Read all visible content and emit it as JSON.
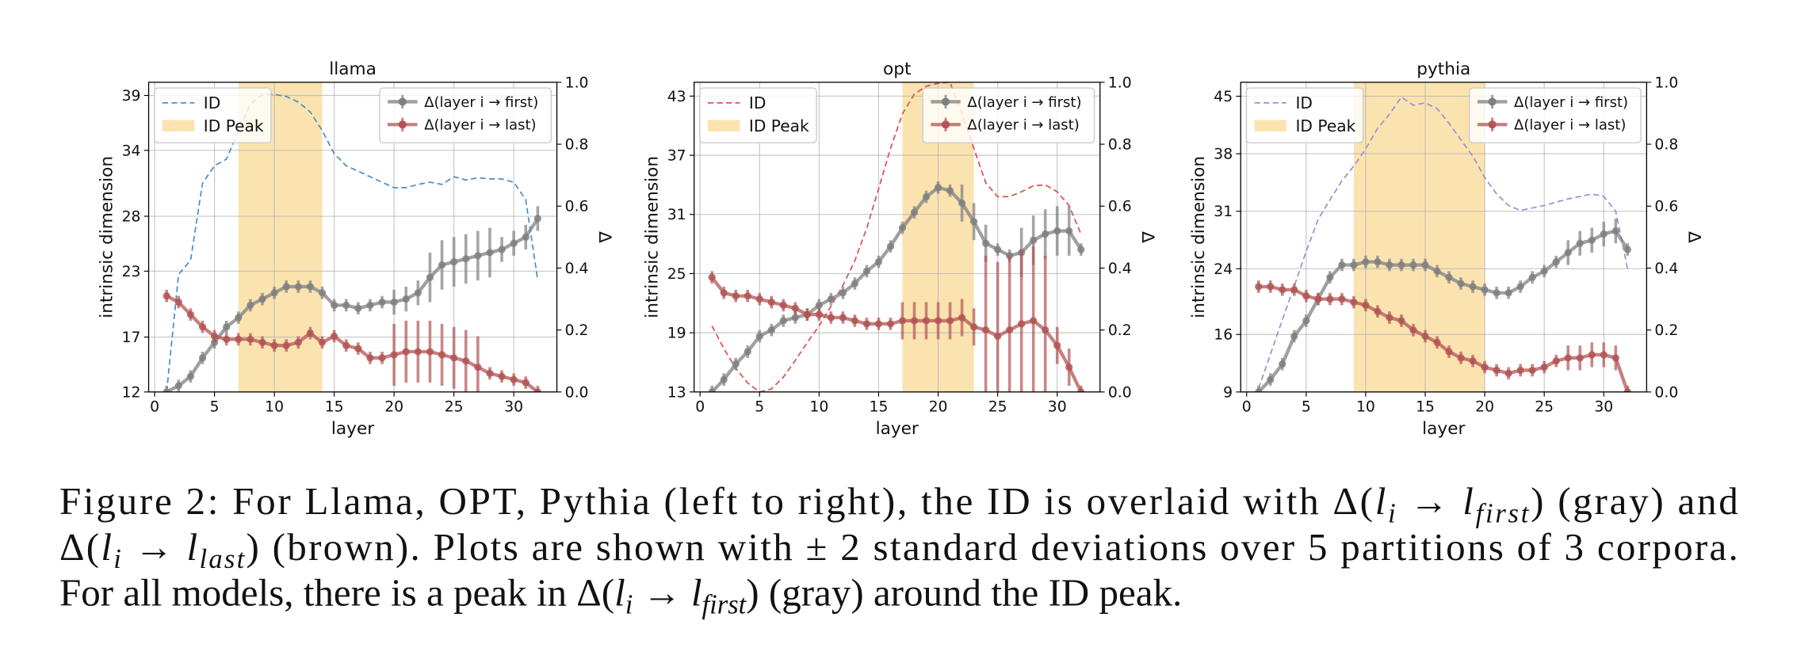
{
  "chart_data": [
    {
      "type": "line",
      "title": "llama",
      "xlabel": "layer",
      "ylabel": "intrinsic dimension",
      "y2label": "Δ",
      "peak": [
        7,
        14
      ],
      "peak_label": "ID Peak",
      "peak_color": "#fbe3b0",
      "grid": true,
      "xlim": [
        -0.5,
        33.6
      ],
      "xticks": [
        0,
        5,
        10,
        15,
        20,
        25,
        30
      ],
      "ylim": [
        12,
        40.2
      ],
      "yticks": [
        12,
        17,
        23,
        28,
        34,
        39
      ],
      "y2lim": [
        0,
        1
      ],
      "y2ticks": [
        {
          "value": 0,
          "label": "0.0"
        },
        0.2,
        0.4,
        0.6,
        0.8,
        {
          "value": 1,
          "label": "1.0"
        }
      ],
      "x": [
        1,
        2,
        3,
        4,
        5,
        6,
        7,
        8,
        9,
        10,
        11,
        12,
        13,
        14,
        15,
        16,
        17,
        18,
        19,
        20,
        21,
        22,
        23,
        24,
        25,
        26,
        27,
        28,
        29,
        30,
        31,
        32
      ],
      "series": [
        {
          "name": "ID",
          "color": "#4a8fc7",
          "axis": "y",
          "dashed": true,
          "values": [
            12,
            22.7,
            24,
            31,
            32.6,
            33.2,
            35.8,
            38.2,
            39.1,
            39.1,
            38.9,
            38.4,
            37.5,
            35.8,
            33.7,
            32.6,
            32.1,
            31.6,
            31.1,
            30.6,
            30.6,
            30.9,
            31.1,
            30.9,
            31.6,
            31.3,
            31.5,
            31.4,
            31.4,
            31.1,
            29.5,
            22.2
          ]
        },
        {
          "name": "Δ(layer i → first)",
          "color": "#808080",
          "axis": "y2",
          "values": [
            0,
            0.02,
            0.05,
            0.11,
            0.16,
            0.21,
            0.24,
            0.28,
            0.3,
            0.32,
            0.34,
            0.34,
            0.34,
            0.32,
            0.28,
            0.28,
            0.27,
            0.28,
            0.29,
            0.29,
            0.3,
            0.32,
            0.37,
            0.41,
            0.42,
            0.43,
            0.44,
            0.45,
            0.46,
            0.48,
            0.5,
            0.56
          ],
          "errors": [
            0.01,
            0.01,
            0.01,
            0.01,
            0.01,
            0.01,
            0.01,
            0.01,
            0.01,
            0.01,
            0.01,
            0.01,
            0.01,
            0.01,
            0.01,
            0.01,
            0.01,
            0.01,
            0.01,
            0.02,
            0.02,
            0.02,
            0.04,
            0.04,
            0.04,
            0.04,
            0.04,
            0.04,
            0.02,
            0.02,
            0.02,
            0.02
          ]
        },
        {
          "name": "Δ(layer i → last)",
          "color": "#b35555",
          "axis": "y2",
          "values": [
            0.31,
            0.29,
            0.25,
            0.21,
            0.18,
            0.17,
            0.17,
            0.17,
            0.16,
            0.15,
            0.15,
            0.16,
            0.19,
            0.16,
            0.18,
            0.15,
            0.14,
            0.11,
            0.11,
            0.12,
            0.13,
            0.13,
            0.13,
            0.12,
            0.11,
            0.1,
            0.08,
            0.06,
            0.05,
            0.04,
            0.03,
            0
          ],
          "errors": [
            0.01,
            0.01,
            0.01,
            0.01,
            0.01,
            0.01,
            0.01,
            0.01,
            0.01,
            0.01,
            0.01,
            0.01,
            0.01,
            0.01,
            0.01,
            0.01,
            0.01,
            0.01,
            0.01,
            0.05,
            0.05,
            0.05,
            0.05,
            0.05,
            0.05,
            0.05,
            0.05,
            0.01,
            0.01,
            0.01,
            0.01,
            0.01
          ]
        }
      ]
    },
    {
      "type": "line",
      "title": "opt",
      "xlabel": "layer",
      "ylabel": "intrinsic dimension",
      "y2label": "Δ",
      "peak": [
        17,
        23
      ],
      "peak_label": "ID Peak",
      "peak_color": "#fbe3b0",
      "grid": true,
      "xlim": [
        -0.5,
        33.6
      ],
      "xticks": [
        0,
        5,
        10,
        15,
        20,
        25,
        30
      ],
      "ylim": [
        13,
        44.4
      ],
      "yticks": [
        13,
        19,
        25,
        31,
        37,
        43
      ],
      "y2lim": [
        0,
        1
      ],
      "y2ticks": [
        {
          "value": 0,
          "label": "0.0"
        },
        0.2,
        0.4,
        0.6,
        0.8,
        {
          "value": 1,
          "label": "1.0"
        }
      ],
      "x": [
        1,
        2,
        3,
        4,
        5,
        6,
        7,
        8,
        9,
        10,
        11,
        12,
        13,
        14,
        15,
        16,
        17,
        18,
        19,
        20,
        21,
        22,
        23,
        24,
        25,
        26,
        27,
        28,
        29,
        30,
        31,
        32
      ],
      "series": [
        {
          "name": "ID",
          "color": "#d9534f",
          "axis": "y",
          "dashed": true,
          "values": [
            19.7,
            17.4,
            15.4,
            13.9,
            13,
            13.3,
            14.5,
            16.2,
            18,
            19.7,
            21.7,
            23.8,
            26.3,
            29.6,
            33.6,
            37.7,
            41.2,
            43.2,
            44,
            44.3,
            44.4,
            41.2,
            37.7,
            34.2,
            32.8,
            32.8,
            33.3,
            33.9,
            34,
            33.3,
            31.9,
            29
          ]
        },
        {
          "name": "Δ(layer i → first)",
          "color": "#808080",
          "axis": "y2",
          "values": [
            0,
            0.04,
            0.09,
            0.13,
            0.18,
            0.2,
            0.23,
            0.24,
            0.25,
            0.28,
            0.3,
            0.32,
            0.35,
            0.39,
            0.42,
            0.47,
            0.53,
            0.58,
            0.63,
            0.66,
            0.65,
            0.61,
            0.55,
            0.48,
            0.46,
            0.44,
            0.45,
            0.49,
            0.51,
            0.52,
            0.52,
            0.46
          ],
          "errors": [
            0.01,
            0.01,
            0.01,
            0.01,
            0.01,
            0.01,
            0.01,
            0.01,
            0.01,
            0.01,
            0.01,
            0.01,
            0.01,
            0.01,
            0.01,
            0.01,
            0.01,
            0.01,
            0.01,
            0.01,
            0.01,
            0.03,
            0.03,
            0.03,
            0.01,
            0.01,
            0.04,
            0.04,
            0.04,
            0.04,
            0.04,
            0.01
          ]
        },
        {
          "name": "Δ(layer i → last)",
          "color": "#b35555",
          "axis": "y2",
          "values": [
            0.37,
            0.32,
            0.31,
            0.31,
            0.3,
            0.29,
            0.28,
            0.27,
            0.25,
            0.25,
            0.24,
            0.24,
            0.23,
            0.22,
            0.22,
            0.22,
            0.23,
            0.23,
            0.23,
            0.23,
            0.23,
            0.24,
            0.21,
            0.2,
            0.18,
            0.2,
            0.22,
            0.23,
            0.2,
            0.15,
            0.08,
            0
          ],
          "errors": [
            0.01,
            0.01,
            0.01,
            0.01,
            0.01,
            0.01,
            0.01,
            0.01,
            0.01,
            0.01,
            0.01,
            0.01,
            0.01,
            0.01,
            0.01,
            0.01,
            0.03,
            0.03,
            0.03,
            0.03,
            0.03,
            0.03,
            0.03,
            0.12,
            0.12,
            0.12,
            0.12,
            0.12,
            0.12,
            0.03,
            0.03,
            0.01
          ]
        }
      ]
    },
    {
      "type": "line",
      "title": "pythia",
      "xlabel": "layer",
      "ylabel": "intrinsic dimension",
      "y2label": "Δ",
      "peak": [
        9,
        20
      ],
      "peak_label": "ID Peak",
      "peak_color": "#fbe3b0",
      "grid": true,
      "xlim": [
        -0.5,
        33.6
      ],
      "xticks": [
        0,
        5,
        10,
        15,
        20,
        25,
        30
      ],
      "ylim": [
        9,
        46.7
      ],
      "yticks": [
        9,
        16,
        24,
        31,
        38,
        45
      ],
      "y2lim": [
        0,
        1
      ],
      "y2ticks": [
        {
          "value": 0,
          "label": "0.0"
        },
        0.2,
        0.4,
        0.6,
        0.8,
        {
          "value": 1,
          "label": "1.0"
        }
      ],
      "x": [
        1,
        2,
        3,
        4,
        5,
        6,
        7,
        8,
        9,
        10,
        11,
        12,
        13,
        14,
        15,
        16,
        17,
        18,
        19,
        20,
        21,
        22,
        23,
        24,
        25,
        26,
        27,
        28,
        29,
        30,
        31,
        32
      ],
      "series": [
        {
          "name": "ID",
          "color": "#9a8fd6",
          "axis": "y",
          "dashed": true,
          "values": [
            9.4,
            13.6,
            17.8,
            21.9,
            26.1,
            30,
            32.4,
            34.7,
            36.5,
            38.6,
            41.1,
            42.8,
            44.9,
            43.9,
            44.2,
            43.5,
            41.7,
            39.7,
            37.7,
            35.1,
            33.1,
            31.7,
            31.1,
            31.4,
            31.7,
            32.1,
            32.5,
            32.8,
            33.1,
            32.8,
            31,
            24
          ]
        },
        {
          "name": "Δ(layer i → first)",
          "color": "#808080",
          "axis": "y2",
          "values": [
            0,
            0.04,
            0.09,
            0.18,
            0.23,
            0.3,
            0.37,
            0.41,
            0.41,
            0.42,
            0.42,
            0.41,
            0.41,
            0.41,
            0.41,
            0.39,
            0.37,
            0.35,
            0.34,
            0.33,
            0.32,
            0.32,
            0.34,
            0.37,
            0.39,
            0.42,
            0.45,
            0.48,
            0.49,
            0.51,
            0.52,
            0.46
          ],
          "errors": [
            0.01,
            0.01,
            0.01,
            0.01,
            0.01,
            0.01,
            0.01,
            0.01,
            0.01,
            0.01,
            0.01,
            0.01,
            0.01,
            0.01,
            0.01,
            0.01,
            0.01,
            0.01,
            0.01,
            0.01,
            0.01,
            0.01,
            0.01,
            0.01,
            0.01,
            0.01,
            0.02,
            0.02,
            0.02,
            0.02,
            0.02,
            0.01
          ]
        },
        {
          "name": "Δ(layer i → last)",
          "color": "#b35555",
          "axis": "y2",
          "values": [
            0.34,
            0.34,
            0.33,
            0.33,
            0.31,
            0.3,
            0.3,
            0.3,
            0.29,
            0.28,
            0.26,
            0.24,
            0.23,
            0.2,
            0.18,
            0.16,
            0.13,
            0.11,
            0.1,
            0.08,
            0.07,
            0.06,
            0.07,
            0.07,
            0.08,
            0.1,
            0.11,
            0.11,
            0.12,
            0.12,
            0.11,
            0
          ],
          "errors": [
            0.01,
            0.01,
            0.01,
            0.01,
            0.01,
            0.01,
            0.01,
            0.01,
            0.01,
            0.01,
            0.01,
            0.01,
            0.01,
            0.01,
            0.01,
            0.01,
            0.01,
            0.01,
            0.01,
            0.01,
            0.01,
            0.01,
            0.01,
            0.01,
            0.01,
            0.01,
            0.02,
            0.02,
            0.02,
            0.02,
            0.02,
            0.01
          ]
        }
      ]
    }
  ],
  "caption": {
    "lines": [
      [
        {
          "text": "Figure 2: For Llama, OPT, Pythia (left to right), the ID is overlaid with Δ("
        },
        {
          "text": "l",
          "italic": true
        },
        {
          "text": "i",
          "sub": true
        },
        {
          "text": " → "
        },
        {
          "text": "l",
          "italic": true
        },
        {
          "text": "first",
          "sub": true
        },
        {
          "text": ") (gray) and"
        }
      ],
      [
        {
          "text": "Δ("
        },
        {
          "text": "l",
          "italic": true
        },
        {
          "text": "i",
          "sub": true
        },
        {
          "text": " → "
        },
        {
          "text": "l",
          "italic": true
        },
        {
          "text": "last",
          "sub": true
        },
        {
          "text": ") (brown). Plots are shown with ± 2 standard deviations over 5 partitions of 3 corpora."
        }
      ],
      [
        {
          "text": "For all models, there is a peak in Δ("
        },
        {
          "text": "l",
          "italic": true
        },
        {
          "text": "i",
          "sub": true
        },
        {
          "text": " → "
        },
        {
          "text": "l",
          "italic": true
        },
        {
          "text": "first",
          "sub": true
        },
        {
          "text": ") (gray) around the ID peak."
        }
      ]
    ]
  }
}
